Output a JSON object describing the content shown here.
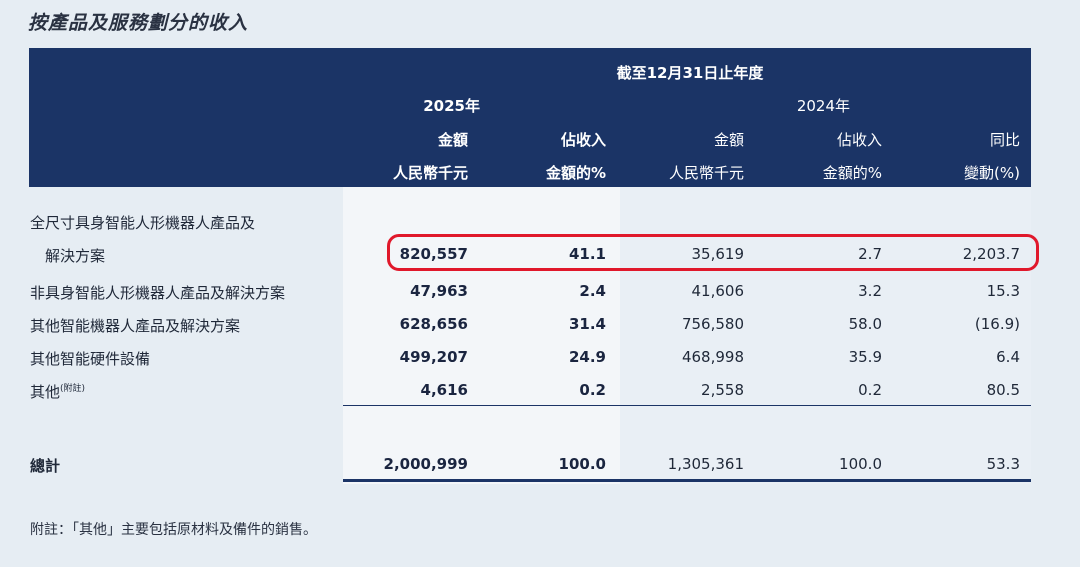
{
  "title": "按產品及服務劃分的收入",
  "header": {
    "period": "截至12月31日止年度",
    "year_2025": "2025年",
    "year_2024": "2024年",
    "amount": "金額",
    "currency_unit": "人民幣千元",
    "share_line1": "佔收入",
    "share_line2": "金額的%",
    "yoy_line1": "同比",
    "yoy_line2": "變動(%)"
  },
  "rows": [
    {
      "label_line1": "全尺寸具身智能人形機器人產品及",
      "label_line2": "解決方案",
      "amt_2025": "820,557",
      "pct_2025": "41.1",
      "amt_2024": "35,619",
      "pct_2024": "2.7",
      "yoy": "2,203.7"
    },
    {
      "label": "非具身智能人形機器人產品及解決方案",
      "amt_2025": "47,963",
      "pct_2025": "2.4",
      "amt_2024": "41,606",
      "pct_2024": "3.2",
      "yoy": "15.3"
    },
    {
      "label": "其他智能機器人產品及解決方案",
      "amt_2025": "628,656",
      "pct_2025": "31.4",
      "amt_2024": "756,580",
      "pct_2024": "58.0",
      "yoy": "(16.9)"
    },
    {
      "label": "其他智能硬件設備",
      "amt_2025": "499,207",
      "pct_2025": "24.9",
      "amt_2024": "468,998",
      "pct_2024": "35.9",
      "yoy": "6.4"
    },
    {
      "label": "其他",
      "label_sup": "(附註)",
      "amt_2025": "4,616",
      "pct_2025": "0.2",
      "amt_2024": "2,558",
      "pct_2024": "0.2",
      "yoy": "80.5"
    }
  ],
  "total": {
    "label": "總計",
    "amt_2025": "2,000,999",
    "pct_2025": "100.0",
    "amt_2024": "1,305,361",
    "pct_2024": "100.0",
    "yoy": "53.3"
  },
  "footnote": "附註：「其他」主要包括原材料及備件的銷售。",
  "colors": {
    "header_bg": "#1b3466",
    "highlight": "#e0182b",
    "page_bg": "#e6edf3"
  }
}
